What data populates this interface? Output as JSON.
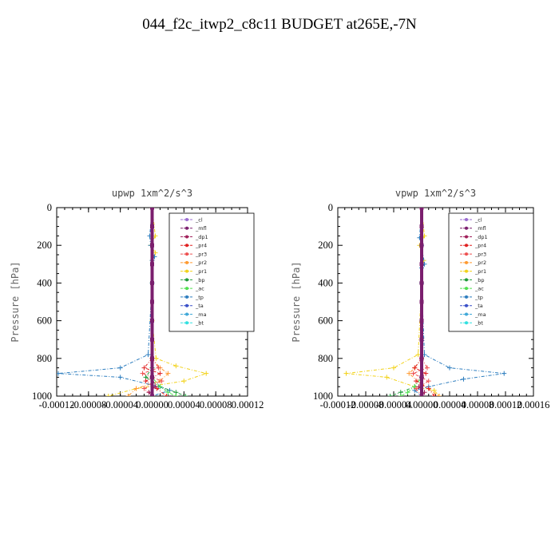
{
  "title": "044_f2c_itwp2_c8c11  BUDGET at265E,-7N",
  "colors": {
    "_cl": "#9a6bd0",
    "_mfl": "#7b1f6e",
    "_dp1": "#a0205a",
    "_pr4": "#e02020",
    "_pr3": "#ee5050",
    "_pr2": "#ff9a30",
    "_pr1": "#f2d21a",
    "_bp": "#1f9a3a",
    "_ac": "#50e050",
    "_tp": "#2e7ebf",
    "_ta": "#3a50c8",
    "_ma": "#40a8d8",
    "_bt": "#30e0e0"
  },
  "chart_data": [
    {
      "type": "line",
      "title": "upwp   1xm^2/s^3",
      "ylabel": "Pressure  [hPa]",
      "xlim": [
        -0.00012,
        0.00012
      ],
      "ylim": [
        1000,
        0
      ],
      "x_tick_labels": [
        "-0.00012",
        "-0.00008",
        "-0.00004",
        "0.00000",
        "0.00004",
        "0.00008",
        "0.00012"
      ],
      "y_tick_labels": [
        "0",
        "200",
        "400",
        "600",
        "800",
        "1000"
      ],
      "legend": [
        "_cl",
        "_mfl",
        "_dp1",
        "_pr4",
        "_pr3",
        "_pr2",
        "_pr1",
        "_bp",
        "_ac",
        "_tp",
        "_ta",
        "_ma",
        "_bt"
      ],
      "legend_position": "top-right",
      "series": [
        {
          "key": "_mfl",
          "x": [
            0,
            0,
            0,
            0,
            0,
            0,
            0,
            0,
            0,
            0,
            0
          ],
          "y": [
            0,
            100,
            200,
            300,
            400,
            500,
            600,
            700,
            800,
            900,
            1000
          ]
        },
        {
          "key": "_pr1",
          "x": [
            0,
            4e-06,
            -2e-06,
            4e-06,
            0,
            0,
            0,
            5e-06,
            3e-05,
            6.8e-05,
            4e-05,
            -2e-05,
            -5.5e-05
          ],
          "y": [
            0,
            150,
            200,
            240,
            280,
            400,
            600,
            800,
            840,
            880,
            920,
            960,
            1000
          ]
        },
        {
          "key": "_pr2",
          "x": [
            0,
            0,
            0,
            1e-05,
            2e-05,
            1e-05,
            -2e-05,
            -3e-05
          ],
          "y": [
            0,
            400,
            800,
            850,
            880,
            920,
            960,
            1000
          ]
        },
        {
          "key": "_tp",
          "x": [
            0,
            -3e-06,
            -2e-06,
            3e-06,
            0,
            0,
            -5e-06,
            -4e-05,
            -0.000118,
            -4e-05,
            8e-06,
            2.2e-05,
            0
          ],
          "y": [
            0,
            150,
            200,
            260,
            280,
            400,
            780,
            850,
            880,
            900,
            950,
            970,
            1000
          ]
        },
        {
          "key": "_bp",
          "x": [
            0,
            0,
            -8e-06,
            1e-05,
            3e-05,
            4.2e-05
          ],
          "y": [
            0,
            850,
            900,
            950,
            980,
            1000
          ]
        },
        {
          "key": "_ac",
          "x": [
            0,
            0,
            1e-05,
            2e-05,
            3e-05
          ],
          "y": [
            0,
            900,
            950,
            980,
            1000
          ]
        },
        {
          "key": "_pr4",
          "x": [
            0,
            0,
            -1e-05,
            1e-05,
            -8e-06,
            6e-06,
            1.8e-05
          ],
          "y": [
            0,
            800,
            850,
            880,
            920,
            960,
            1000
          ]
        },
        {
          "key": "_pr3",
          "x": [
            0,
            0,
            8e-06,
            -1.2e-05,
            1.2e-05,
            -1e-05,
            0
          ],
          "y": [
            0,
            800,
            850,
            880,
            920,
            960,
            1000
          ]
        },
        {
          "key": "_dp1",
          "x": [
            0,
            0,
            4e-06,
            -4e-06,
            0
          ],
          "y": [
            0,
            900,
            950,
            980,
            1000
          ]
        }
      ]
    },
    {
      "type": "line",
      "title": "vpwp   1xm^2/s^3",
      "ylabel": "Pressure  [hPa]",
      "xlim": [
        -0.00012,
        0.00016
      ],
      "ylim": [
        1000,
        0
      ],
      "x_tick_labels": [
        "-0.00012",
        "-0.00008",
        "-0.00004",
        "0.00000",
        "0.00004",
        "0.00008",
        "0.00012",
        "0.00016"
      ],
      "y_tick_labels": [
        "0",
        "200",
        "400",
        "600",
        "800",
        "1000"
      ],
      "legend": [
        "_cl",
        "_mfl",
        "_dp1",
        "_pr4",
        "_pr3",
        "_pr2",
        "_pr1",
        "_bp",
        "_ac",
        "_tp",
        "_ta",
        "_ma",
        "_bt"
      ],
      "legend_position": "top-right",
      "series": [
        {
          "key": "_mfl",
          "x": [
            0,
            0,
            0,
            0,
            0,
            0,
            0,
            0,
            0,
            0,
            0
          ],
          "y": [
            0,
            100,
            200,
            300,
            400,
            500,
            600,
            700,
            800,
            900,
            1000
          ]
        },
        {
          "key": "_pr1",
          "x": [
            0,
            4e-06,
            -3e-06,
            3e-06,
            0,
            0,
            -5e-06,
            -4e-05,
            -0.000108,
            -5e-05,
            -1e-05,
            1.8e-05,
            2.5e-05
          ],
          "y": [
            0,
            150,
            200,
            280,
            320,
            400,
            780,
            850,
            880,
            900,
            950,
            970,
            1000
          ]
        },
        {
          "key": "_pr2",
          "x": [
            0,
            0,
            0,
            -1e-05,
            -1.8e-05,
            0,
            2.5e-05
          ],
          "y": [
            0,
            400,
            800,
            850,
            880,
            940,
            1000
          ]
        },
        {
          "key": "_tp",
          "x": [
            0,
            -3e-06,
            0,
            4e-06,
            0,
            0,
            4e-06,
            4e-05,
            0.000118,
            6e-05,
            1e-05,
            -1e-05,
            0
          ],
          "y": [
            0,
            160,
            200,
            300,
            320,
            400,
            780,
            850,
            880,
            910,
            950,
            970,
            1000
          ]
        },
        {
          "key": "_bp",
          "x": [
            0,
            0,
            -1e-05,
            -3e-05,
            -4.5e-05
          ],
          "y": [
            0,
            900,
            950,
            980,
            1000
          ]
        },
        {
          "key": "_ac",
          "x": [
            0,
            0,
            -1e-05,
            -2e-05,
            -3e-05
          ],
          "y": [
            0,
            900,
            950,
            980,
            1000
          ]
        },
        {
          "key": "_pr4",
          "x": [
            0,
            0,
            -1e-05,
            6e-06,
            -8e-06,
            1e-05,
            1.8e-05
          ],
          "y": [
            0,
            800,
            850,
            880,
            920,
            960,
            1000
          ]
        },
        {
          "key": "_pr3",
          "x": [
            0,
            0,
            8e-06,
            -1.2e-05,
            1e-05,
            -8e-06,
            0
          ],
          "y": [
            0,
            800,
            850,
            880,
            920,
            960,
            1000
          ]
        },
        {
          "key": "_dp1",
          "x": [
            0,
            0,
            -4e-06,
            4e-06,
            0
          ],
          "y": [
            0,
            900,
            950,
            980,
            1000
          ]
        }
      ]
    }
  ]
}
